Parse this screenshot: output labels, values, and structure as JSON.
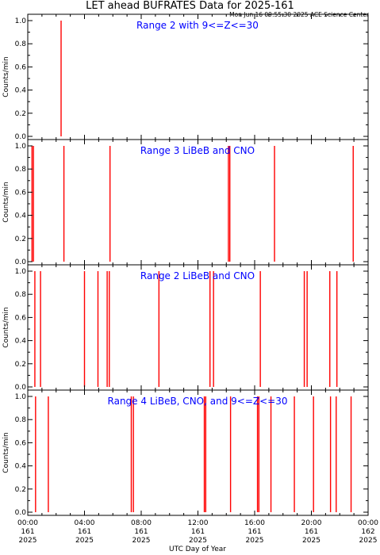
{
  "title": "LET ahead BUFRATES Data for 2025-161",
  "subtitle": "Mon Jun 16 09:55:30 2025 ACE Science Center",
  "chart_data": {
    "type": "line",
    "xlabel": "UTC Day of Year",
    "ylabel": "Counts/min",
    "xlim": [
      0,
      24
    ],
    "ylim": [
      0,
      1.0
    ],
    "x_ticks": [
      {
        "time": "00:00",
        "doy": "161",
        "year": "2025"
      },
      {
        "time": "04:00",
        "doy": "161",
        "year": "2025"
      },
      {
        "time": "08:00",
        "doy": "161",
        "year": "2025"
      },
      {
        "time": "12:00",
        "doy": "161",
        "year": "2025"
      },
      {
        "time": "16:00",
        "doy": "161",
        "year": "2025"
      },
      {
        "time": "20:00",
        "doy": "161",
        "year": "2025"
      },
      {
        "time": "00:00",
        "doy": "162",
        "year": "2025"
      }
    ],
    "y_ticks": [
      "0.0",
      "0.2",
      "0.4",
      "0.6",
      "0.8",
      "1.0"
    ],
    "series_color": "#ff0000",
    "panels": [
      {
        "title": "Range 2 with 9<=Z<=30",
        "spikes": [
          2.35
        ]
      },
      {
        "title": "Range 3 LiBeB and CNO",
        "spikes": [
          0.3,
          0.4,
          2.55,
          5.8,
          14.15,
          14.25,
          17.4,
          22.95
        ]
      },
      {
        "title": "Range 2 LiBeB and CNO",
        "spikes": [
          0.5,
          0.9,
          4.0,
          4.95,
          5.6,
          5.75,
          9.25,
          12.85,
          13.1,
          16.4,
          19.5,
          19.7,
          21.3,
          21.8
        ]
      },
      {
        "title": "Range 4 LiBeB, CNO, and 9<=Z<=30",
        "spikes": [
          0.55,
          1.45,
          7.3,
          7.45,
          12.45,
          12.55,
          14.3,
          16.2,
          16.3,
          17.15,
          18.8,
          20.15,
          21.35,
          21.75,
          22.8
        ]
      }
    ]
  }
}
